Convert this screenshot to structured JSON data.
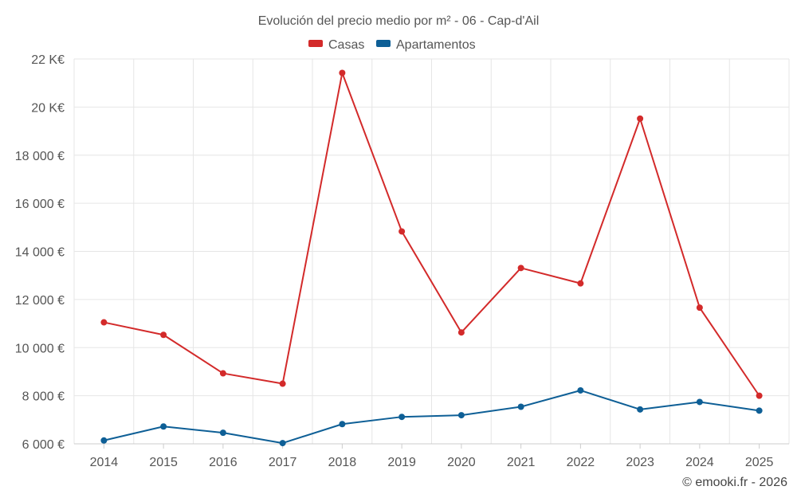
{
  "chart_data": {
    "type": "line",
    "title": "Evolución del precio medio por m² - 06 - Cap-d'Ail",
    "categories": [
      "2014",
      "2015",
      "2016",
      "2017",
      "2018",
      "2019",
      "2020",
      "2021",
      "2022",
      "2023",
      "2024",
      "2025"
    ],
    "series": [
      {
        "name": "Casas",
        "color": "#d32a2a",
        "values": [
          11050,
          10530,
          8930,
          8500,
          21420,
          14830,
          10630,
          13310,
          12670,
          19520,
          11660,
          8000
        ]
      },
      {
        "name": "Apartamentos",
        "color": "#0e5f96",
        "values": [
          6140,
          6720,
          6460,
          6030,
          6820,
          7120,
          7190,
          7540,
          8220,
          7430,
          7740,
          7380
        ]
      }
    ],
    "ylim": [
      6000,
      22000
    ],
    "yticks": [
      6000,
      8000,
      10000,
      12000,
      14000,
      16000,
      18000,
      20000,
      22000
    ],
    "ytick_labels": [
      "6 000 €",
      "8 000 €",
      "10 000 €",
      "12 000 €",
      "14 000 €",
      "16 000 €",
      "18 000 €",
      "20 K€",
      "22 K€"
    ],
    "xlabel": "",
    "ylabel": "",
    "legend_position": "top-center",
    "grid": true
  },
  "credit": "© emooki.fr - 2026"
}
